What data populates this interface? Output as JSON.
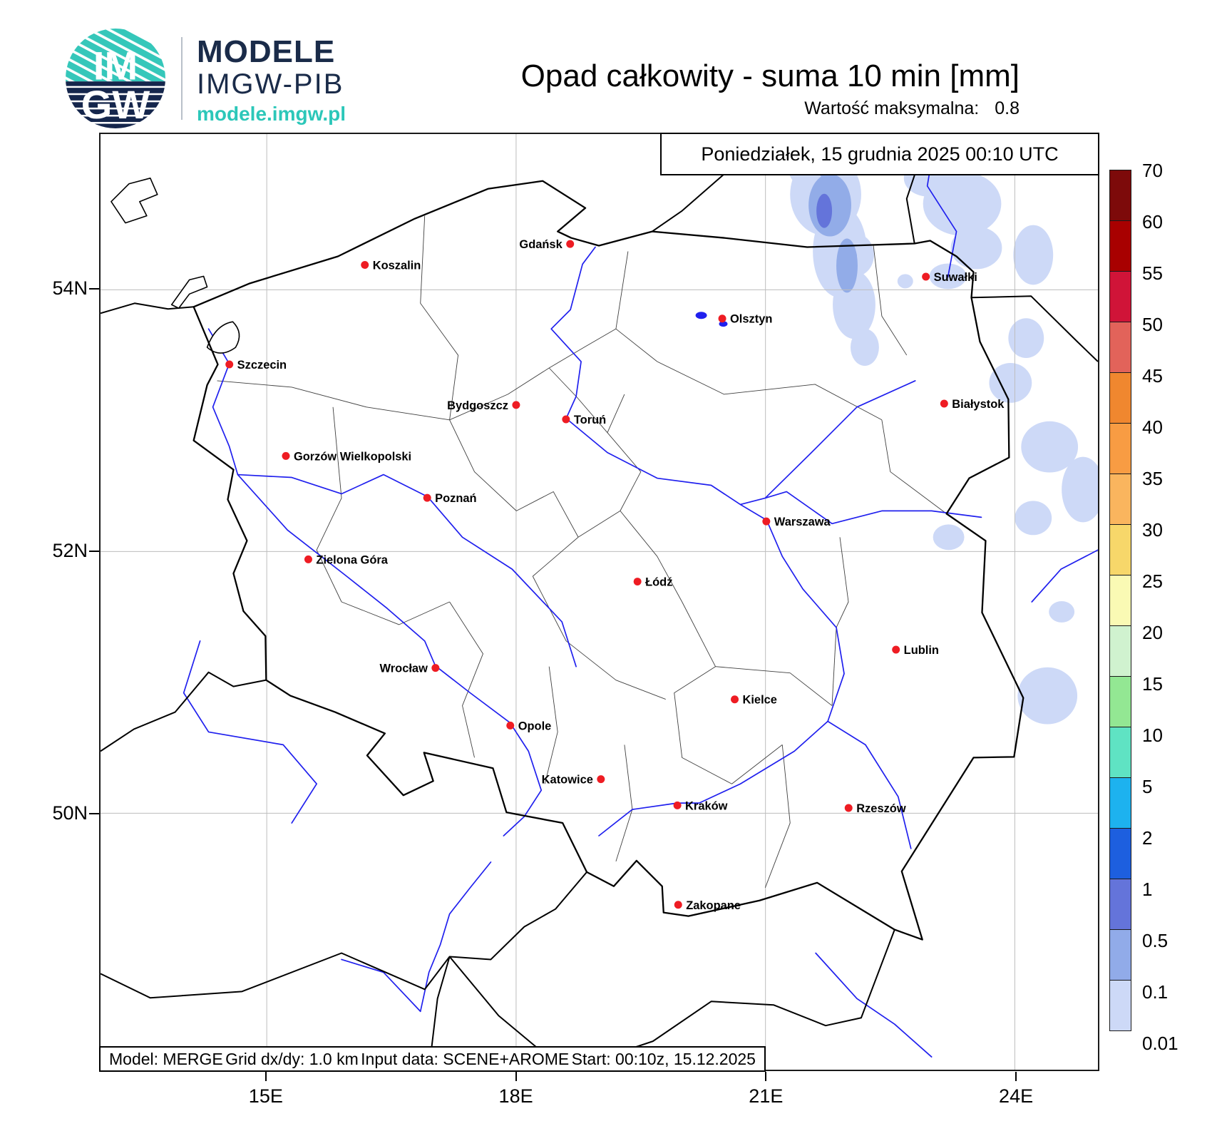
{
  "header": {
    "brand": {
      "line1": "MODELE",
      "line2": "IMGW-PIB",
      "url": "modele.imgw.pl",
      "logo_top_text": "IM",
      "logo_bottom_text": "GW"
    },
    "title": "Opad całkowity - suma 10 min [mm]",
    "subtitle_label": "Wartość maksymalna:",
    "subtitle_value": "0.8"
  },
  "map": {
    "date_label": "Poniedziałek, 15 grudnia 2025 00:10 UTC",
    "footer_parts": [
      "Model: MERGE",
      "Grid dx/dy: 1.0 km",
      "Input data: SCENE+AROME",
      "Start: 00:10z, 15.12.2025"
    ],
    "extent": {
      "lon_min": 13,
      "lon_max": 25,
      "lat_min": 48.04,
      "lat_max": 55.19
    },
    "cities": [
      {
        "name": "Szczecin",
        "lon": 14.55,
        "lat": 53.43,
        "side": "right"
      },
      {
        "name": "Koszalin",
        "lon": 16.18,
        "lat": 54.19,
        "side": "right"
      },
      {
        "name": "Gdańsk",
        "lon": 18.65,
        "lat": 54.35,
        "side": "left"
      },
      {
        "name": "Suwałki",
        "lon": 22.93,
        "lat": 54.1,
        "side": "right"
      },
      {
        "name": "Olsztyn",
        "lon": 20.48,
        "lat": 53.78,
        "side": "right"
      },
      {
        "name": "Białystok",
        "lon": 23.15,
        "lat": 53.13,
        "side": "right"
      },
      {
        "name": "Bydgoszcz",
        "lon": 18.0,
        "lat": 53.12,
        "side": "left"
      },
      {
        "name": "Toruń",
        "lon": 18.6,
        "lat": 53.01,
        "side": "right"
      },
      {
        "name": "Gorzów Wielkopolski",
        "lon": 15.23,
        "lat": 52.73,
        "side": "right"
      },
      {
        "name": "Poznań",
        "lon": 16.93,
        "lat": 52.41,
        "side": "right"
      },
      {
        "name": "Warszawa",
        "lon": 21.01,
        "lat": 52.23,
        "side": "right"
      },
      {
        "name": "Zielona Góra",
        "lon": 15.5,
        "lat": 51.94,
        "side": "right"
      },
      {
        "name": "Łódź",
        "lon": 19.46,
        "lat": 51.77,
        "side": "right"
      },
      {
        "name": "Lublin",
        "lon": 22.57,
        "lat": 51.25,
        "side": "right"
      },
      {
        "name": "Wrocław",
        "lon": 17.03,
        "lat": 51.11,
        "side": "left"
      },
      {
        "name": "Kielce",
        "lon": 20.63,
        "lat": 50.87,
        "side": "right"
      },
      {
        "name": "Opole",
        "lon": 17.93,
        "lat": 50.67,
        "side": "right"
      },
      {
        "name": "Katowice",
        "lon": 19.02,
        "lat": 50.26,
        "side": "left"
      },
      {
        "name": "Kraków",
        "lon": 19.94,
        "lat": 50.06,
        "side": "right"
      },
      {
        "name": "Rzeszów",
        "lon": 22.0,
        "lat": 50.04,
        "side": "right"
      },
      {
        "name": "Zakopane",
        "lon": 19.95,
        "lat": 49.3,
        "side": "right"
      }
    ]
  },
  "axes": {
    "lat_ticks": [
      {
        "label": "54N",
        "lat": 54
      },
      {
        "label": "52N",
        "lat": 52
      },
      {
        "label": "50N",
        "lat": 50
      }
    ],
    "lon_ticks": [
      {
        "label": "15E",
        "lon": 15
      },
      {
        "label": "18E",
        "lon": 18
      },
      {
        "label": "21E",
        "lon": 21
      },
      {
        "label": "24E",
        "lon": 24
      }
    ]
  },
  "colorbar": {
    "boundary_labels": [
      "70",
      "60",
      "55",
      "50",
      "45",
      "40",
      "35",
      "30",
      "25",
      "20",
      "15",
      "10",
      "5",
      "2",
      "1",
      "0.5",
      "0.1",
      "0.01"
    ],
    "segment_colors_top_to_bottom": [
      "#7d0a0a",
      "#a80000",
      "#d01438",
      "#e2635a",
      "#f0872f",
      "#f89c43",
      "#fab55e",
      "#f7d76a",
      "#fafab4",
      "#d0f2cf",
      "#93e793",
      "#5fe3c3",
      "#1db2ef",
      "#1d5fdf",
      "#6474da",
      "#91abe9",
      "#cdd9f7"
    ]
  },
  "colors": {
    "city_dot": "#ee1c23",
    "river": "#2020ee",
    "teal": "#2cc7b9",
    "navy": "#1a2b49",
    "precip_light": "#cdd9f7",
    "precip_mid": "#92ace8",
    "precip_dark": "#6474da"
  }
}
